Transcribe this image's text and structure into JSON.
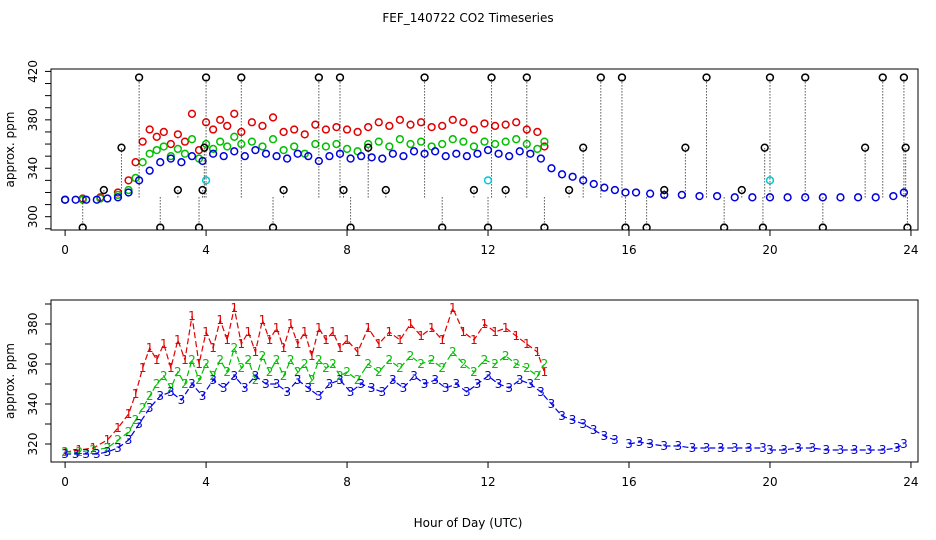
{
  "title": "FEF_140722  CO2 Timeseries",
  "xlabel": "Hour of Day (UTC)",
  "colors": {
    "series1": "#e00000",
    "series2": "#00c000",
    "series3": "#0000e0",
    "black": "#000000",
    "cyan": "#00c8d8"
  },
  "chart_data": [
    {
      "type": "scatter",
      "panel": "top",
      "ylabel": "approx. ppm",
      "xlim": [
        -0.4,
        24.2
      ],
      "ylim": [
        289,
        422
      ],
      "xticks": [
        0,
        4,
        8,
        12,
        16,
        20,
        24
      ],
      "xtick_labels": [
        "0",
        "4",
        "8",
        "12",
        "16",
        "20",
        "24"
      ],
      "yticks": [
        300,
        340,
        380,
        420
      ],
      "ytick_labels": [
        "300",
        "340",
        "380",
        "420"
      ],
      "grid": false,
      "legend": "none",
      "series": [
        {
          "color": "#e00000",
          "x": [
            0.0,
            0.5,
            1.0,
            1.5,
            1.8,
            2.0,
            2.2,
            2.4,
            2.6,
            2.8,
            3.0,
            3.2,
            3.4,
            3.6,
            3.8,
            4.0,
            4.2,
            4.4,
            4.6,
            4.8,
            5.0,
            5.3,
            5.6,
            5.9,
            6.2,
            6.5,
            6.8,
            7.1,
            7.4,
            7.7,
            8.0,
            8.3,
            8.6,
            8.9,
            9.2,
            9.5,
            9.8,
            10.1,
            10.4,
            10.7,
            11.0,
            11.3,
            11.6,
            11.9,
            12.2,
            12.5,
            12.8,
            13.1,
            13.4,
            13.6
          ],
          "y": [
            314,
            315,
            316,
            320,
            330,
            345,
            362,
            372,
            366,
            370,
            360,
            368,
            362,
            385,
            355,
            378,
            372,
            380,
            375,
            385,
            370,
            378,
            375,
            382,
            370,
            372,
            368,
            376,
            372,
            374,
            372,
            370,
            374,
            378,
            375,
            380,
            376,
            378,
            374,
            375,
            380,
            378,
            372,
            377,
            375,
            376,
            378,
            372,
            370,
            358
          ]
        },
        {
          "color": "#00c000",
          "x": [
            0.0,
            0.5,
            1.0,
            1.5,
            1.8,
            2.0,
            2.2,
            2.4,
            2.6,
            2.8,
            3.0,
            3.2,
            3.4,
            3.6,
            3.8,
            4.0,
            4.2,
            4.4,
            4.6,
            4.8,
            5.0,
            5.3,
            5.6,
            5.9,
            6.2,
            6.5,
            6.8,
            7.1,
            7.4,
            7.7,
            8.0,
            8.3,
            8.6,
            8.9,
            9.2,
            9.5,
            9.8,
            10.1,
            10.4,
            10.7,
            11.0,
            11.3,
            11.6,
            11.9,
            12.2,
            12.5,
            12.8,
            13.1,
            13.4,
            13.6
          ],
          "y": [
            314,
            314,
            315,
            318,
            322,
            332,
            345,
            352,
            355,
            358,
            350,
            356,
            352,
            364,
            348,
            360,
            356,
            362,
            358,
            366,
            360,
            362,
            358,
            364,
            355,
            358,
            352,
            360,
            358,
            360,
            356,
            354,
            360,
            362,
            358,
            364,
            360,
            362,
            358,
            360,
            364,
            362,
            358,
            362,
            360,
            362,
            364,
            360,
            356,
            362
          ]
        },
        {
          "color": "#0000e0",
          "x": [
            0.0,
            0.3,
            0.6,
            0.9,
            1.2,
            1.5,
            1.8,
            2.1,
            2.4,
            2.7,
            3.0,
            3.3,
            3.6,
            3.9,
            4.2,
            4.5,
            4.8,
            5.1,
            5.4,
            5.7,
            6.0,
            6.3,
            6.6,
            6.9,
            7.2,
            7.5,
            7.8,
            8.1,
            8.4,
            8.7,
            9.0,
            9.3,
            9.6,
            9.9,
            10.2,
            10.5,
            10.8,
            11.1,
            11.4,
            11.7,
            12.0,
            12.3,
            12.6,
            12.9,
            13.2,
            13.5,
            13.8,
            14.1,
            14.4,
            14.7,
            15.0,
            15.3,
            15.6,
            15.9,
            16.2,
            16.6,
            17.0,
            17.5,
            18.0,
            18.5,
            19.0,
            19.5,
            20.0,
            20.5,
            21.0,
            21.5,
            22.0,
            22.5,
            23.0,
            23.5,
            23.8
          ],
          "y": [
            314,
            314,
            314,
            314,
            315,
            316,
            320,
            330,
            338,
            345,
            348,
            345,
            350,
            346,
            352,
            350,
            354,
            350,
            355,
            352,
            350,
            348,
            352,
            350,
            346,
            350,
            352,
            348,
            350,
            349,
            348,
            352,
            350,
            354,
            352,
            354,
            350,
            352,
            350,
            352,
            355,
            352,
            350,
            354,
            352,
            348,
            340,
            335,
            333,
            330,
            327,
            324,
            322,
            320,
            320,
            319,
            318,
            318,
            317,
            317,
            316,
            316,
            316,
            316,
            316,
            316,
            316,
            316,
            316,
            317,
            320
          ]
        },
        {
          "color": "#000000",
          "x": [
            0.5,
            1.1,
            1.6,
            2.1,
            2.7,
            3.2,
            3.8,
            3.9,
            3.95,
            4.0,
            5.0,
            5.9,
            6.2,
            7.2,
            7.8,
            7.9,
            8.1,
            8.6,
            9.1,
            10.2,
            10.7,
            11.6,
            12.0,
            12.1,
            12.5,
            13.1,
            13.6,
            14.3,
            14.7,
            15.2,
            15.8,
            15.9,
            16.5,
            17.0,
            17.6,
            18.2,
            18.7,
            19.2,
            19.8,
            19.85,
            20.0,
            21.0,
            21.5,
            22.7,
            23.2,
            23.8,
            23.85,
            23.9
          ],
          "y": [
            291,
            322,
            357,
            415,
            291,
            322,
            291,
            322,
            357,
            415,
            415,
            291,
            322,
            415,
            415,
            322,
            291,
            357,
            322,
            415,
            291,
            322,
            291,
            415,
            322,
            415,
            291,
            322,
            357,
            415,
            415,
            291,
            291,
            322,
            357,
            415,
            291,
            322,
            291,
            357,
            415,
            415,
            291,
            357,
            415,
            415,
            357,
            291
          ]
        },
        {
          "color": "#00c8d8",
          "x": [
            4.0,
            12.0,
            20.0
          ],
          "y": [
            330,
            330,
            330
          ]
        }
      ]
    },
    {
      "type": "line",
      "panel": "bottom",
      "ylabel": "approx. ppm",
      "xlim": [
        -0.4,
        24.2
      ],
      "ylim": [
        311,
        392
      ],
      "xticks": [
        0,
        4,
        8,
        12,
        16,
        20,
        24
      ],
      "xtick_labels": [
        "0",
        "4",
        "8",
        "12",
        "16",
        "20",
        "24"
      ],
      "yticks": [
        320,
        340,
        360,
        380
      ],
      "ytick_labels": [
        "320",
        "340",
        "360",
        "380"
      ],
      "grid": false,
      "legend": "none",
      "series": [
        {
          "color": "#e00000",
          "marker": "1",
          "x": [
            0.0,
            0.4,
            0.8,
            1.2,
            1.5,
            1.8,
            2.0,
            2.2,
            2.4,
            2.6,
            2.8,
            3.0,
            3.2,
            3.4,
            3.6,
            3.8,
            4.0,
            4.2,
            4.4,
            4.6,
            4.8,
            5.0,
            5.2,
            5.4,
            5.6,
            5.8,
            6.0,
            6.2,
            6.4,
            6.6,
            6.8,
            7.0,
            7.2,
            7.4,
            7.6,
            7.8,
            8.0,
            8.3,
            8.6,
            8.9,
            9.2,
            9.5,
            9.8,
            10.1,
            10.4,
            10.7,
            11.0,
            11.3,
            11.6,
            11.9,
            12.2,
            12.5,
            12.8,
            13.1,
            13.4,
            13.6
          ],
          "y": [
            316,
            317,
            318,
            322,
            328,
            335,
            345,
            358,
            368,
            362,
            370,
            358,
            372,
            362,
            384,
            360,
            376,
            368,
            382,
            372,
            388,
            370,
            376,
            366,
            382,
            372,
            378,
            368,
            380,
            370,
            376,
            364,
            378,
            372,
            376,
            368,
            372,
            366,
            378,
            370,
            376,
            372,
            380,
            374,
            378,
            372,
            388,
            376,
            372,
            380,
            376,
            378,
            374,
            370,
            366,
            356
          ]
        },
        {
          "color": "#00c000",
          "marker": "2",
          "x": [
            0.0,
            0.4,
            0.8,
            1.2,
            1.5,
            1.8,
            2.0,
            2.2,
            2.4,
            2.6,
            2.8,
            3.0,
            3.2,
            3.4,
            3.6,
            3.8,
            4.0,
            4.2,
            4.4,
            4.6,
            4.8,
            5.0,
            5.2,
            5.4,
            5.6,
            5.8,
            6.0,
            6.2,
            6.4,
            6.6,
            6.8,
            7.0,
            7.2,
            7.4,
            7.6,
            7.8,
            8.0,
            8.3,
            8.6,
            8.9,
            9.2,
            9.5,
            9.8,
            10.1,
            10.4,
            10.7,
            11.0,
            11.3,
            11.6,
            11.9,
            12.2,
            12.5,
            12.8,
            13.1,
            13.4,
            13.6
          ],
          "y": [
            316,
            316,
            317,
            318,
            322,
            326,
            332,
            338,
            344,
            350,
            354,
            348,
            356,
            350,
            362,
            352,
            360,
            354,
            362,
            356,
            368,
            358,
            362,
            352,
            364,
            356,
            362,
            354,
            362,
            356,
            360,
            352,
            362,
            358,
            360,
            354,
            356,
            352,
            360,
            356,
            362,
            358,
            364,
            360,
            362,
            358,
            366,
            360,
            356,
            362,
            360,
            364,
            360,
            358,
            354,
            360
          ]
        },
        {
          "color": "#0000e0",
          "marker": "3",
          "x": [
            0.0,
            0.3,
            0.6,
            0.9,
            1.2,
            1.5,
            1.8,
            2.1,
            2.4,
            2.7,
            3.0,
            3.3,
            3.6,
            3.9,
            4.2,
            4.5,
            4.8,
            5.1,
            5.4,
            5.7,
            6.0,
            6.3,
            6.6,
            6.9,
            7.2,
            7.5,
            7.8,
            8.1,
            8.4,
            8.7,
            9.0,
            9.3,
            9.6,
            9.9,
            10.2,
            10.5,
            10.8,
            11.1,
            11.4,
            11.7,
            12.0,
            12.3,
            12.6,
            12.9,
            13.2,
            13.5,
            13.8,
            14.1,
            14.4,
            14.7,
            15.0,
            15.3,
            15.6
          ],
          "y": [
            315,
            315,
            315,
            315,
            316,
            318,
            322,
            330,
            338,
            344,
            346,
            342,
            350,
            344,
            352,
            348,
            354,
            348,
            354,
            350,
            350,
            346,
            352,
            348,
            344,
            350,
            352,
            346,
            350,
            348,
            346,
            352,
            348,
            354,
            350,
            352,
            348,
            350,
            346,
            350,
            354,
            350,
            348,
            352,
            350,
            346,
            340,
            334,
            332,
            330,
            327,
            324,
            322
          ]
        },
        {
          "color": "#0000e0",
          "marker": "3",
          "x": [
            16.0,
            16.3,
            16.6,
            17.0,
            17.4,
            17.8,
            18.2,
            18.6,
            19.0,
            19.4,
            19.8
          ],
          "y": [
            320,
            321,
            320,
            319,
            319,
            318,
            318,
            318,
            318,
            318,
            318
          ]
        },
        {
          "color": "#0000e0",
          "marker": "3",
          "x": [
            20.0,
            20.4,
            20.8,
            21.2,
            21.6,
            22.0,
            22.4,
            22.8,
            23.2,
            23.6,
            23.8
          ],
          "y": [
            317,
            317,
            318,
            318,
            317,
            317,
            317,
            317,
            317,
            318,
            320
          ]
        }
      ]
    }
  ]
}
